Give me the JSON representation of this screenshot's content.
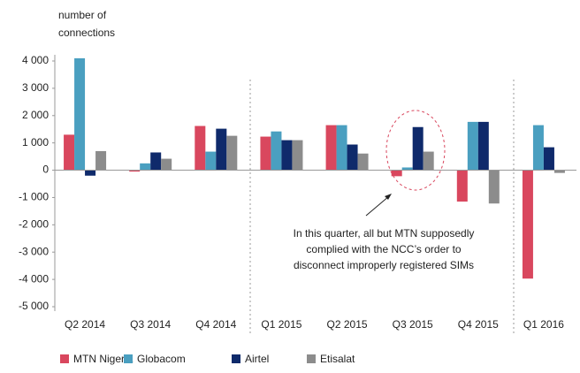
{
  "chart_data": {
    "type": "bar",
    "ylabel": [
      "number of",
      "connections"
    ],
    "categories": [
      "Q2 2014",
      "Q3 2014",
      "Q4 2014",
      "Q1 2015",
      "Q2 2015",
      "Q3 2015",
      "Q4 2015",
      "Q1 2016"
    ],
    "series": [
      {
        "name": "MTN Nigeria",
        "color": "#d9475e",
        "values": [
          1300,
          -50,
          1620,
          1230,
          1650,
          -220,
          -1150,
          -3970
        ]
      },
      {
        "name": "Globacom",
        "color": "#4a9fc0",
        "values": [
          4100,
          250,
          680,
          1420,
          1650,
          100,
          1770,
          1650
        ]
      },
      {
        "name": "Airtel",
        "color": "#0f2a6b",
        "values": [
          -200,
          650,
          1520,
          1100,
          940,
          1580,
          1770,
          840
        ]
      },
      {
        "name": "Etisalat",
        "color": "#8c8c8c",
        "values": [
          700,
          420,
          1260,
          1100,
          610,
          680,
          -1220,
          -100
        ]
      }
    ],
    "ylim": [
      -5000,
      4000
    ],
    "yticks": [
      {
        "value": -5000,
        "label": "-5 000"
      },
      {
        "value": -4000,
        "label": "-4 000"
      },
      {
        "value": -3000,
        "label": "-3 000"
      },
      {
        "value": -2000,
        "label": "-2 000"
      },
      {
        "value": -1000,
        "label": "-1 000"
      },
      0,
      {
        "value": 1000,
        "label": "1 000"
      },
      {
        "value": 2000,
        "label": "2 000"
      },
      {
        "value": 3000,
        "label": "3 000"
      },
      {
        "value": 4000,
        "label": "4 000"
      }
    ],
    "annotation": [
      "In this quarter, all but MTN supposedly",
      "complied with the NCC’s order to",
      "disconnect improperly registered SIMs"
    ],
    "legend": "bottom-left"
  }
}
